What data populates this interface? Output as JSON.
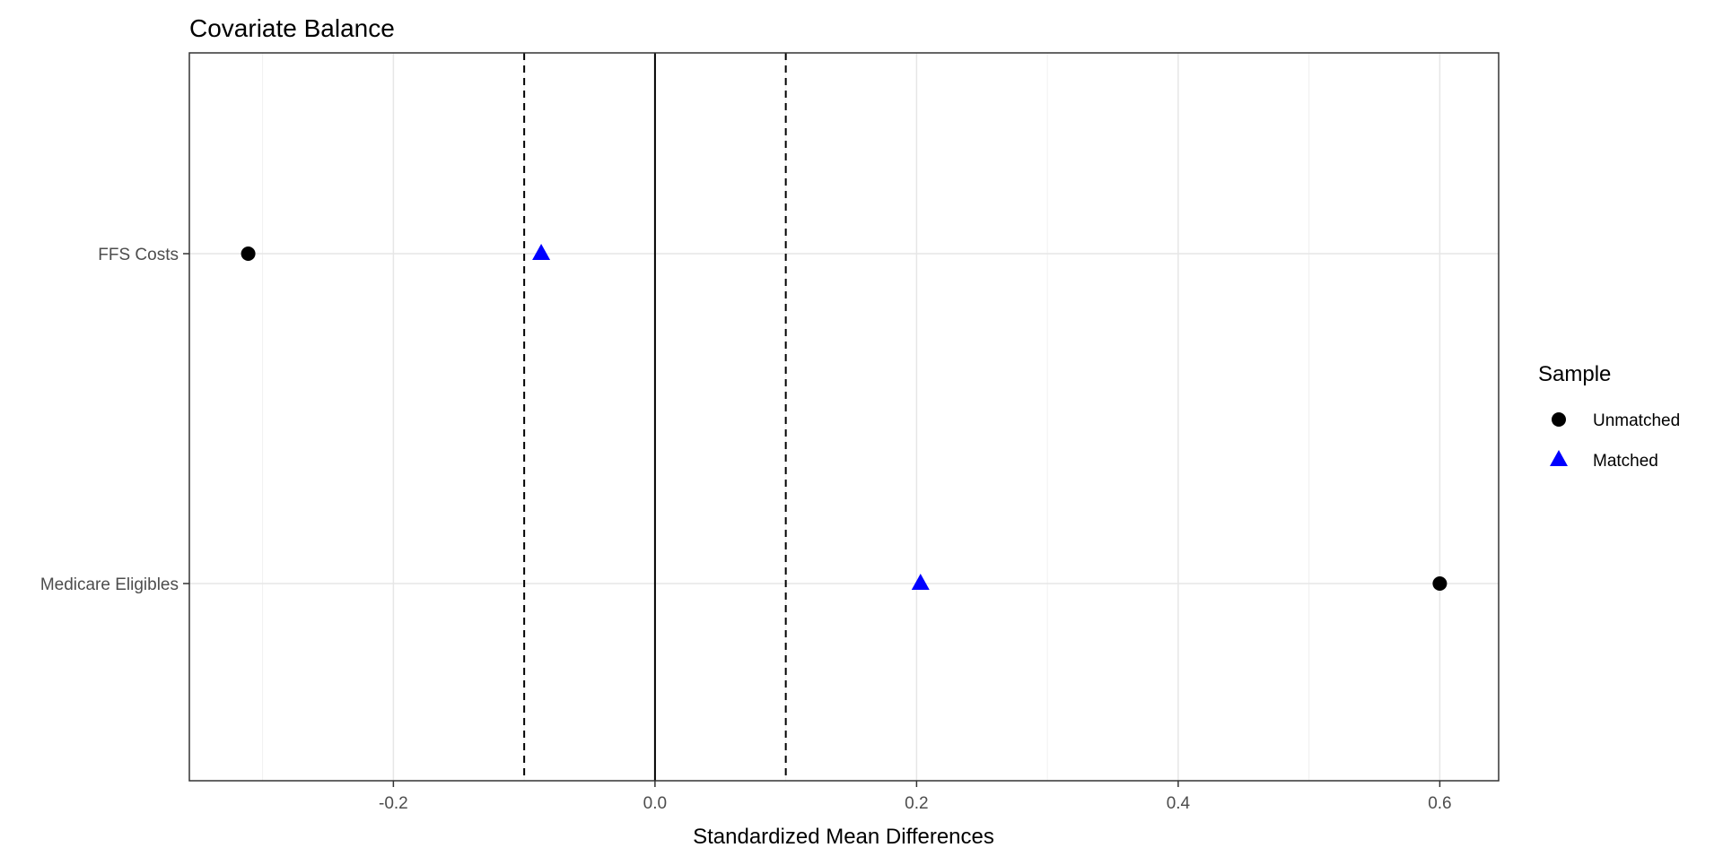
{
  "chart_data": {
    "type": "scatter",
    "title": "Covariate Balance",
    "xlabel": "Standardized Mean Differences",
    "ylabel": "",
    "xlim": [
      -0.356,
      0.645
    ],
    "x_ticks": [
      -0.2,
      0.0,
      0.2,
      0.4,
      0.6
    ],
    "x_tick_labels": [
      "-0.2",
      "0.0",
      "0.2",
      "0.4",
      "0.6"
    ],
    "categories": [
      "FFS Costs",
      "Medicare Eligibles"
    ],
    "reference_lines": {
      "solid": 0,
      "dashed": [
        -0.1,
        0.1
      ]
    },
    "grid": true,
    "legend": {
      "title": "Sample",
      "position": "right"
    },
    "series": [
      {
        "name": "Unmatched",
        "marker": "circle",
        "color": "#000000",
        "values": [
          -0.311,
          0.6
        ]
      },
      {
        "name": "Matched",
        "marker": "triangle",
        "color": "#0000ff",
        "values": [
          -0.087,
          0.203
        ]
      }
    ]
  }
}
